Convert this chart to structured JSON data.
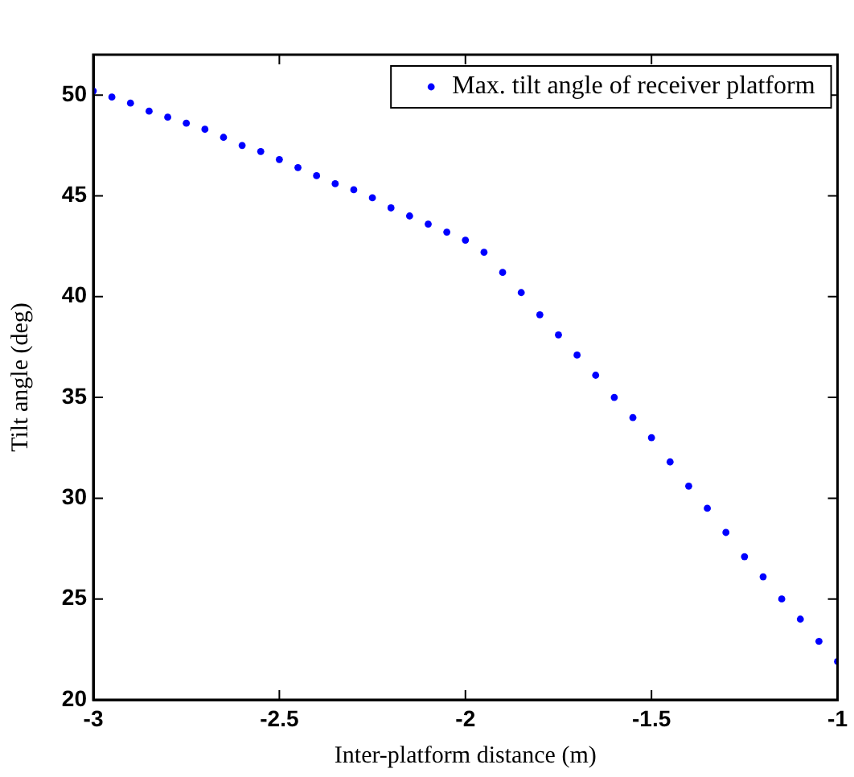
{
  "chart_data": {
    "type": "scatter",
    "xlabel": "Inter-platform distance (m)",
    "ylabel": "Tilt angle (deg)",
    "x": [
      -3,
      -2.95,
      -2.9,
      -2.85,
      -2.8,
      -2.75,
      -2.7,
      -2.65,
      -2.6,
      -2.55,
      -2.5,
      -2.45,
      -2.4,
      -2.35,
      -2.3,
      -2.25,
      -2.2,
      -2.15,
      -2.1,
      -2.05,
      -2,
      -1.95,
      -1.9,
      -1.85,
      -1.8,
      -1.75,
      -1.7,
      -1.65,
      -1.6,
      -1.55,
      -1.5,
      -1.45,
      -1.4,
      -1.35,
      -1.3,
      -1.25,
      -1.2,
      -1.15,
      -1.1,
      -1.05,
      -1
    ],
    "series": [
      {
        "name": "Max. tilt angle of receiver platform",
        "color": "#0000ff",
        "values": [
          50.2,
          49.9,
          49.6,
          49.2,
          48.9,
          48.6,
          48.3,
          47.9,
          47.5,
          47.2,
          46.8,
          46.4,
          46.0,
          45.6,
          45.3,
          44.9,
          44.4,
          44.0,
          43.6,
          43.2,
          42.8,
          42.2,
          41.2,
          40.2,
          39.1,
          38.1,
          37.1,
          36.1,
          35.0,
          34.0,
          33.0,
          31.8,
          30.6,
          29.5,
          28.3,
          27.1,
          26.1,
          25.0,
          24.0,
          22.9,
          21.9
        ]
      }
    ],
    "xlim": [
      -3,
      -1
    ],
    "xticks": [
      -3,
      -2.5,
      -2,
      -1.5,
      -1
    ],
    "ylim": [
      20,
      52
    ],
    "yticks": [
      20,
      25,
      30,
      35,
      40,
      45,
      50
    ],
    "legend": "top right",
    "marker": "circle",
    "grid": false
  }
}
